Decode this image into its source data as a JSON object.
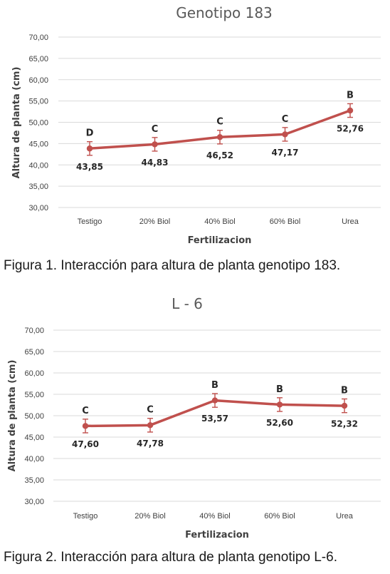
{
  "accent_color": "#c0504d",
  "charts": [
    {
      "caption": "Figura 1. Interacción para altura de planta genotipo 183.",
      "chart_data": {
        "type": "line",
        "title": "Genotipo 183",
        "xlabel": "Fertilizacion",
        "ylabel": "Altura de planta (cm)",
        "ylim": [
          30,
          70
        ],
        "yticks": [
          "30,00",
          "35,00",
          "40,00",
          "45,00",
          "50,00",
          "55,00",
          "60,00",
          "65,00",
          "70,00"
        ],
        "categories": [
          "Testigo",
          "20% Biol",
          "40% Biol",
          "60% Biol",
          "Urea"
        ],
        "values": [
          43.85,
          44.83,
          46.52,
          47.17,
          52.76
        ],
        "value_labels": [
          "43,85",
          "44,83",
          "46,52",
          "47,17",
          "52,76"
        ],
        "error": [
          1.6,
          1.6,
          1.6,
          1.6,
          1.6
        ],
        "letters": [
          "D",
          "C",
          "C",
          "C",
          "B"
        ],
        "grid": true
      }
    },
    {
      "caption": "Figura 2. Interacción para altura de planta genotipo L-6.",
      "chart_data": {
        "type": "line",
        "title": "L - 6",
        "xlabel": "Fertilizacion",
        "ylabel": "Altura de planta (cm)",
        "ylim": [
          30,
          70
        ],
        "yticks": [
          "30,00",
          "35,00",
          "40,00",
          "45,00",
          "50,00",
          "55,00",
          "60,00",
          "65,00",
          "70,00"
        ],
        "categories": [
          "Testigo",
          "20% Biol",
          "40% Biol",
          "60% Biol",
          "Urea"
        ],
        "values": [
          47.6,
          47.78,
          53.57,
          52.6,
          52.32
        ],
        "value_labels": [
          "47,60",
          "47,78",
          "53,57",
          "52,60",
          "52,32"
        ],
        "error": [
          1.6,
          1.6,
          1.6,
          1.6,
          1.6
        ],
        "letters": [
          "C",
          "C",
          "B",
          "B",
          "B"
        ],
        "grid": true
      }
    }
  ]
}
